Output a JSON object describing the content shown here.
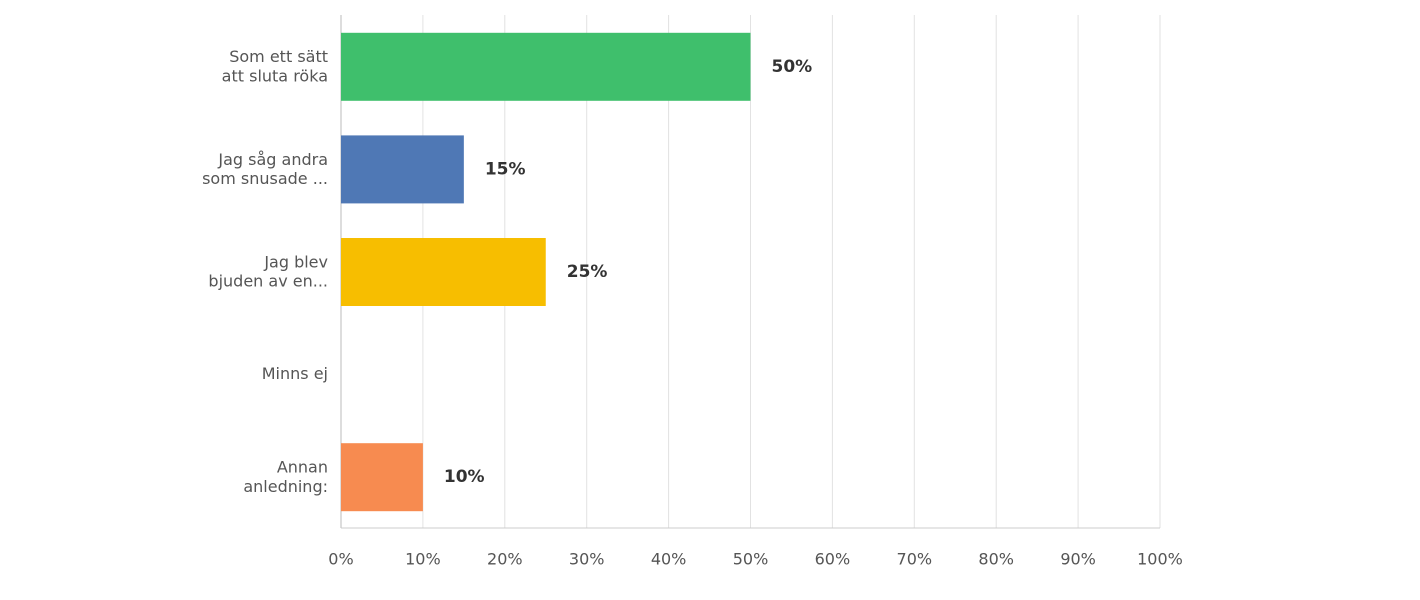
{
  "chart_data": {
    "type": "bar",
    "orientation": "horizontal",
    "categories": [
      "Som ett sätt\natt sluta röka",
      "Jag såg andra\nsom snusade ...",
      "Jag blev\nbjuden av en...",
      "Minns ej",
      "Annan\nanledning:"
    ],
    "values": [
      50,
      15,
      25,
      0,
      10
    ],
    "value_labels": [
      "50%",
      "15%",
      "25%",
      null,
      "10%"
    ],
    "colors": [
      "#3fbf6c",
      "#4f78b5",
      "#f7be00",
      "#9b9b9b",
      "#f78b50"
    ],
    "xlim": [
      0,
      100
    ],
    "xticks": [
      {
        "value": 0,
        "label": "0%"
      },
      {
        "value": 10,
        "label": "10%"
      },
      {
        "value": 20,
        "label": "20%"
      },
      {
        "value": 30,
        "label": "30%"
      },
      {
        "value": 40,
        "label": "40%"
      },
      {
        "value": 50,
        "label": "50%"
      },
      {
        "value": 60,
        "label": "60%"
      },
      {
        "value": 70,
        "label": "70%"
      },
      {
        "value": 80,
        "label": "80%"
      },
      {
        "value": 90,
        "label": "90%"
      },
      {
        "value": 100,
        "label": "100%"
      }
    ],
    "grid": true
  }
}
